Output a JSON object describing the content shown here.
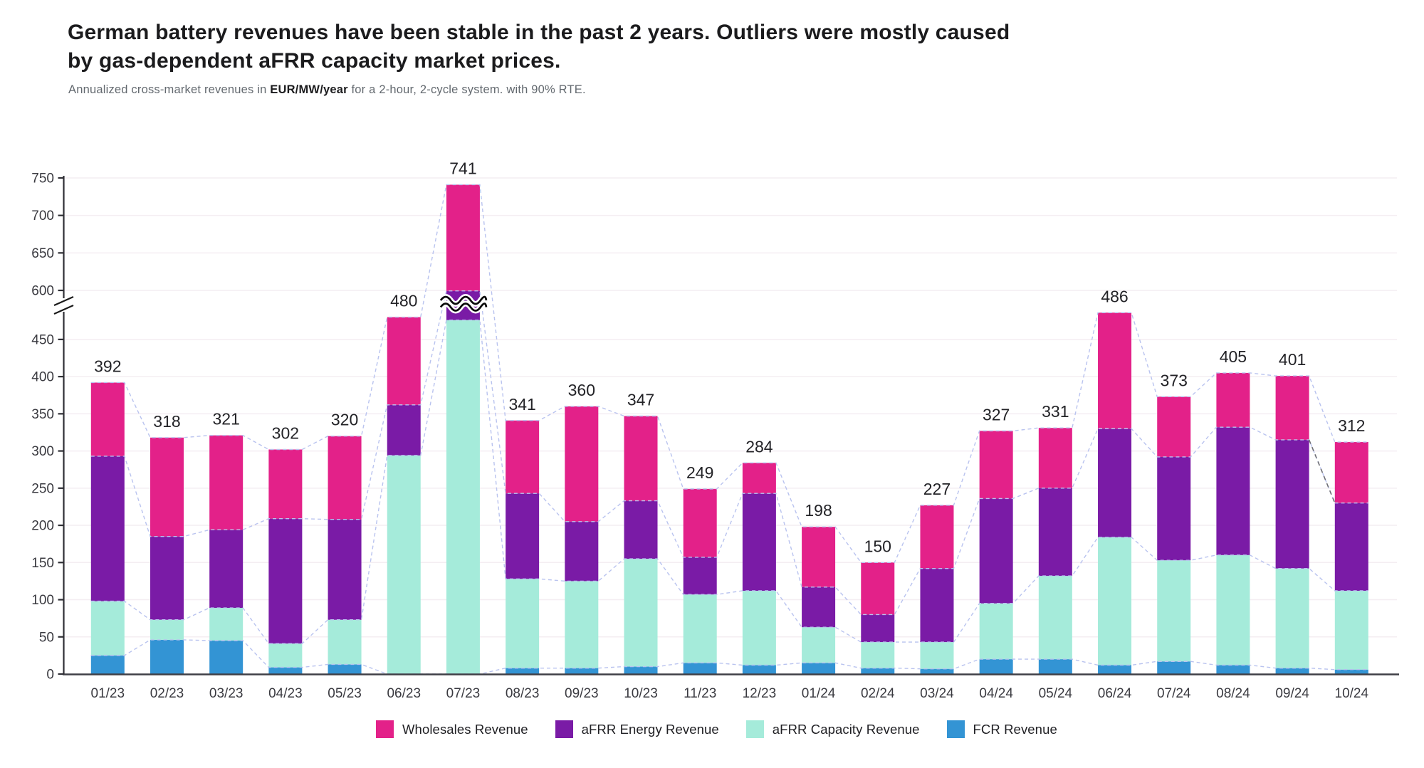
{
  "title": {
    "lines": [
      "German battery revenues have been stable in the past 2 years. Outliers were mostly caused",
      "by gas-dependent aFRR capacity market prices."
    ]
  },
  "subtitle": {
    "prefix": "Annualized cross-market revenues in ",
    "bold": "EUR/MW/year",
    "suffix": " for a 2-hour, 2-cycle system. with 90% RTE."
  },
  "colors": {
    "wholesale": "#E32189",
    "afrr_energy": "#7A1BA6",
    "afrr_capacity": "#A5EBDA",
    "fcr": "#3394D4",
    "connector": "#b9c3ef",
    "connector_dark": "#6f6f76",
    "grid": "#f4eef2",
    "axis": "#2f2f35",
    "tick_text": "#3a3a40",
    "value_text": "#232327"
  },
  "chart_data": {
    "type": "bar",
    "stacked": true,
    "categories": [
      "01/23",
      "02/23",
      "03/23",
      "04/23",
      "05/23",
      "06/23",
      "07/23",
      "08/23",
      "09/23",
      "10/23",
      "11/23",
      "12/23",
      "01/24",
      "02/24",
      "03/24",
      "04/24",
      "05/24",
      "06/24",
      "07/24",
      "08/24",
      "09/24",
      "10/24"
    ],
    "series": [
      {
        "name": "FCR Revenue",
        "color": "#3394D4",
        "values": [
          25,
          46,
          45,
          9,
          13,
          0,
          0,
          8,
          8,
          10,
          15,
          12,
          15,
          8,
          7,
          20,
          20,
          12,
          17,
          12,
          8,
          6
        ]
      },
      {
        "name": "aFRR Capacity Revenue",
        "color": "#A5EBDA",
        "values": [
          73,
          27,
          44,
          32,
          60,
          294,
          476,
          120,
          117,
          145,
          92,
          100,
          48,
          35,
          36,
          75,
          112,
          172,
          136,
          148,
          134,
          106
        ]
      },
      {
        "name": "aFRR Energy Revenue",
        "color": "#7A1BA6",
        "values": [
          195,
          112,
          105,
          168,
          135,
          68,
          121,
          115,
          80,
          78,
          50,
          131,
          54,
          37,
          99,
          141,
          118,
          146,
          139,
          172,
          173,
          118
        ]
      },
      {
        "name": "Wholesales Revenue",
        "color": "#E32189",
        "values": [
          99,
          133,
          127,
          93,
          112,
          118,
          144,
          98,
          155,
          114,
          92,
          41,
          81,
          70,
          85,
          91,
          81,
          156,
          81,
          73,
          86,
          82
        ]
      }
    ],
    "totals": [
      392,
      318,
      321,
      302,
      320,
      480,
      741,
      341,
      360,
      347,
      249,
      284,
      198,
      150,
      227,
      327,
      331,
      486,
      373,
      405,
      401,
      312
    ],
    "y_ticks_lower": [
      0,
      50,
      100,
      150,
      200,
      250,
      300,
      350,
      400,
      450
    ],
    "y_ticks_upper": [
      600,
      650,
      700,
      750
    ],
    "axis_break": {
      "from": 490,
      "to": 600,
      "bar_with_break": "07/23"
    },
    "ylim": [
      0,
      750
    ],
    "grid": true,
    "legend_position": "bottom"
  },
  "legend": {
    "items": [
      {
        "label": "Wholesales Revenue",
        "color": "#E32189"
      },
      {
        "label": "aFRR Energy Revenue",
        "color": "#7A1BA6"
      },
      {
        "label": "aFRR Capacity Revenue",
        "color": "#A5EBDA"
      },
      {
        "label": "FCR Revenue",
        "color": "#3394D4"
      }
    ]
  }
}
